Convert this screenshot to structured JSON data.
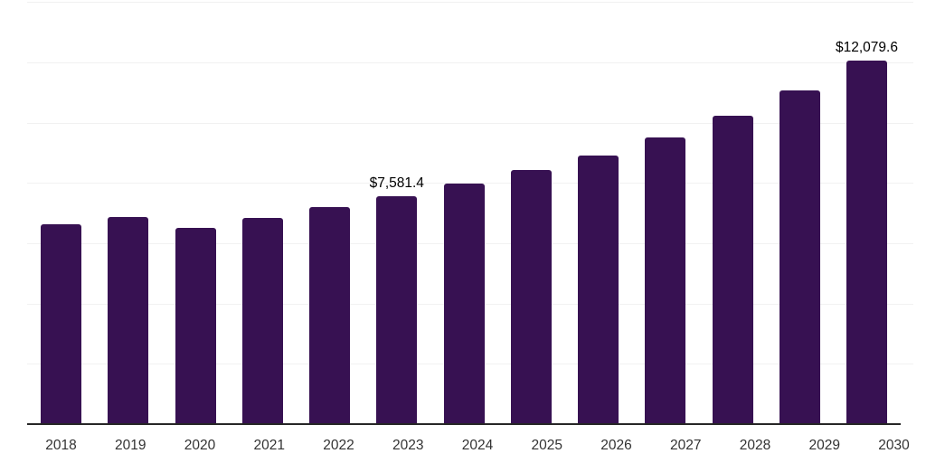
{
  "chart_data": {
    "type": "bar",
    "title": "",
    "xlabel": "",
    "ylabel": "",
    "legend": "none",
    "grid": "horizontal",
    "categories": [
      "2018",
      "2019",
      "2020",
      "2021",
      "2022",
      "2023",
      "2024",
      "2025",
      "2026",
      "2027",
      "2028",
      "2029",
      "2030"
    ],
    "values": [
      6650,
      6910,
      6530,
      6880,
      7220,
      7581.4,
      8000,
      8450,
      8930,
      9530,
      10250,
      11090,
      12079.6
    ],
    "data_labels": [
      "",
      "",
      "",
      "",
      "",
      "$7,581.4",
      "",
      "",
      "",
      "",
      "",
      "",
      "$12,079.6"
    ],
    "ylim": [
      0,
      14100
    ],
    "gridline_values": [
      2000,
      4000,
      6000,
      8000,
      10000,
      12000,
      14000
    ],
    "colors": {
      "bar": "#371152",
      "axis_line": "#262626",
      "gridline": "#f1f1f1",
      "data_label": "#000000",
      "tick_label": "#333333",
      "background": "#ffffff"
    }
  }
}
